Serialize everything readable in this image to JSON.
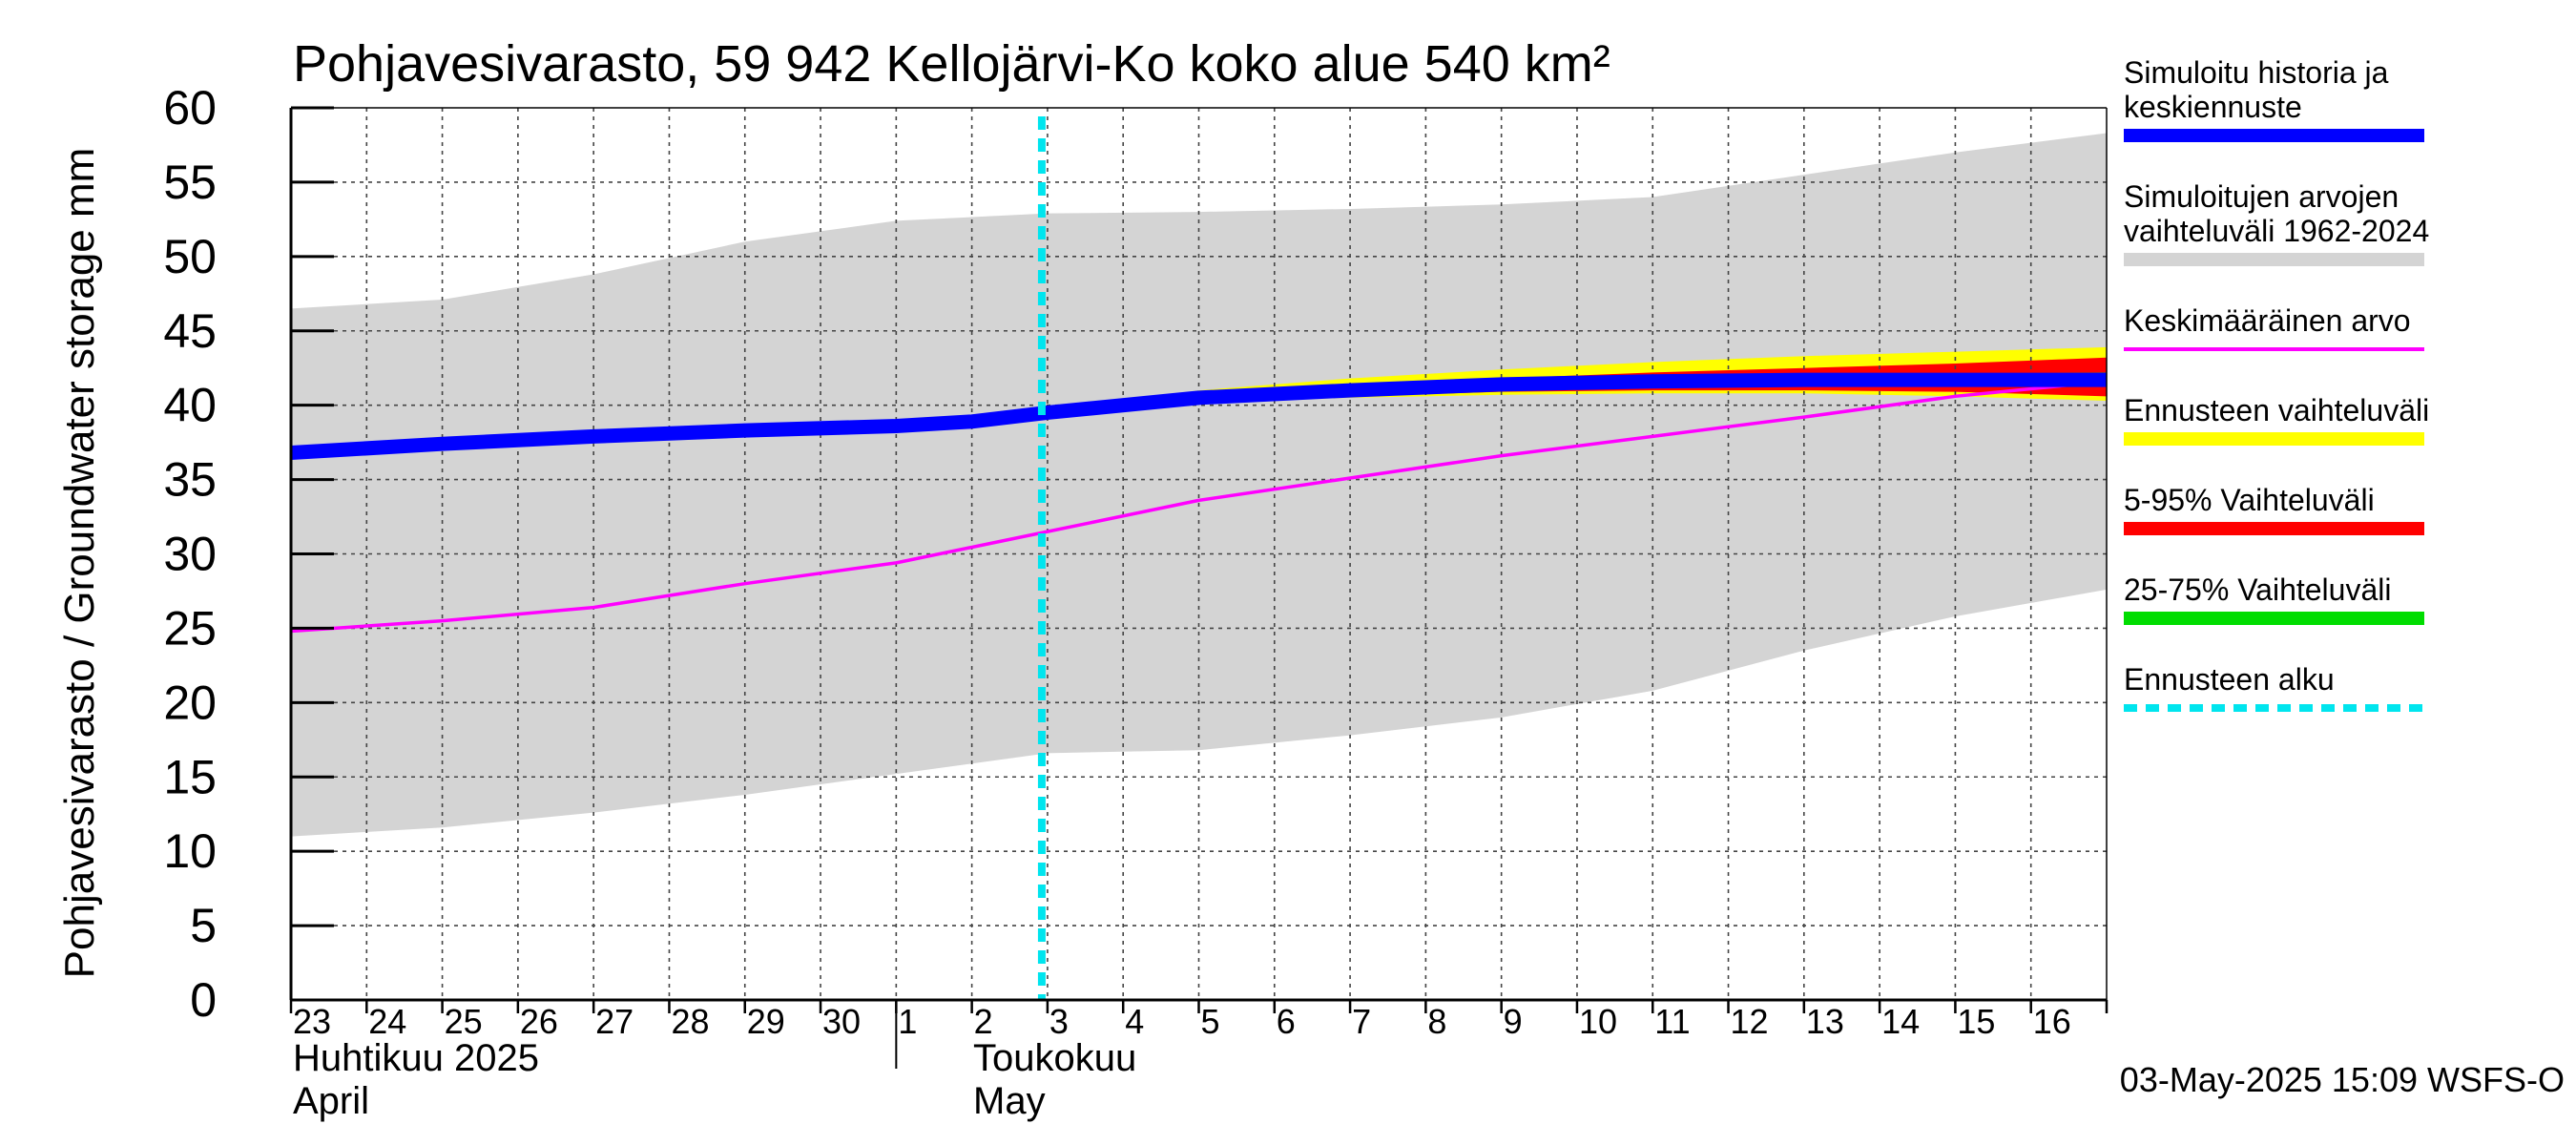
{
  "chart_data": {
    "type": "line",
    "title": "Pohjavesivarasto, 59 942 Kellojärvi-Ko koko alue 540 km²",
    "ylabel": "Pohjavesivarasto / Groundwater storage   mm",
    "ylim": [
      0,
      60
    ],
    "yticks": [
      "0",
      "5",
      "10",
      "15",
      "20",
      "25",
      "30",
      "35",
      "40",
      "45",
      "50",
      "55",
      "60"
    ],
    "x_start_day": 23,
    "x_end_day": 47,
    "grid": true,
    "x_tick_labels": [
      {
        "day": 23,
        "label": "23"
      },
      {
        "day": 24,
        "label": "24"
      },
      {
        "day": 25,
        "label": "25"
      },
      {
        "day": 26,
        "label": "26"
      },
      {
        "day": 27,
        "label": "27"
      },
      {
        "day": 28,
        "label": "28"
      },
      {
        "day": 29,
        "label": "29"
      },
      {
        "day": 30,
        "label": "30"
      },
      {
        "day": 31,
        "label": "1"
      },
      {
        "day": 32,
        "label": "2"
      },
      {
        "day": 33,
        "label": "3"
      },
      {
        "day": 34,
        "label": "4"
      },
      {
        "day": 35,
        "label": "5"
      },
      {
        "day": 36,
        "label": "6"
      },
      {
        "day": 37,
        "label": "7"
      },
      {
        "day": 38,
        "label": "8"
      },
      {
        "day": 39,
        "label": "9"
      },
      {
        "day": 40,
        "label": "10"
      },
      {
        "day": 41,
        "label": "11"
      },
      {
        "day": 42,
        "label": "12"
      },
      {
        "day": 43,
        "label": "13"
      },
      {
        "day": 44,
        "label": "14"
      },
      {
        "day": 45,
        "label": "15"
      },
      {
        "day": 46,
        "label": "16"
      }
    ],
    "month_labels": {
      "april_fi": "Huhtikuu  2025",
      "april_en": "April",
      "may_fi": "Toukokuu",
      "may_en": "May",
      "month_boundary_day": 31
    },
    "forecast_start_day": 33,
    "footer": "03-May-2025 15:09 WSFS-O",
    "series": [
      {
        "name": "Simuloitujen arvojen vaihteluväli 1962-2024",
        "kind": "band",
        "color": "#d4d4d4",
        "x": [
          23,
          25,
          27,
          29,
          31,
          33,
          35,
          37,
          39,
          41,
          43,
          45,
          47
        ],
        "lower": [
          11.0,
          11.6,
          12.6,
          13.8,
          15.2,
          16.6,
          16.8,
          17.8,
          19.0,
          20.8,
          23.5,
          25.8,
          27.6
        ],
        "upper": [
          46.5,
          47.1,
          48.8,
          51.0,
          52.4,
          52.9,
          53.0,
          53.2,
          53.5,
          54.0,
          55.5,
          57.0,
          58.3
        ]
      },
      {
        "name": "Ennusteen vaihteluväli",
        "kind": "band",
        "color": "#ffff00",
        "x": [
          33,
          35,
          37,
          39,
          41,
          43,
          45,
          47
        ],
        "lower": [
          39.3,
          40.2,
          40.5,
          40.7,
          40.8,
          40.8,
          40.6,
          40.3
        ],
        "upper": [
          39.5,
          41.0,
          41.8,
          42.4,
          42.9,
          43.3,
          43.6,
          43.9
        ]
      },
      {
        "name": "5-95% Vaihteluväli",
        "kind": "band",
        "color": "#ff0000",
        "x": [
          33,
          35,
          37,
          39,
          41,
          43,
          45,
          47
        ],
        "lower": [
          39.3,
          40.3,
          40.6,
          40.9,
          41.0,
          41.0,
          40.9,
          40.6
        ],
        "upper": [
          39.5,
          40.7,
          41.3,
          41.8,
          42.2,
          42.5,
          42.8,
          43.2
        ]
      },
      {
        "name": "25-75% Vaihteluväli",
        "kind": "band",
        "color": "#00dd00",
        "x": [
          33,
          35,
          37,
          39,
          41,
          43,
          45,
          47
        ],
        "lower": [
          39.4,
          40.4,
          40.9,
          41.2,
          41.4,
          41.5,
          41.5,
          41.4
        ],
        "upper": [
          39.5,
          40.6,
          41.1,
          41.6,
          41.9,
          42.0,
          42.1,
          42.2
        ]
      },
      {
        "name": "Keskimääräinen arvo",
        "kind": "line",
        "color": "#ff00ff",
        "x": [
          23,
          25,
          27,
          29,
          31,
          33,
          35,
          37,
          39,
          41,
          43,
          45,
          47
        ],
        "values": [
          24.8,
          25.5,
          26.4,
          28.0,
          29.4,
          31.5,
          33.6,
          35.1,
          36.6,
          37.9,
          39.2,
          40.6,
          41.6
        ]
      },
      {
        "name": "Simuloitu historia ja keskiennuste",
        "kind": "line",
        "color": "#0000ff",
        "x": [
          23,
          25,
          27,
          29,
          31,
          32,
          33,
          35,
          37,
          39,
          41,
          43,
          45,
          47
        ],
        "values": [
          36.8,
          37.4,
          37.9,
          38.3,
          38.6,
          38.9,
          39.5,
          40.5,
          41.0,
          41.4,
          41.6,
          41.7,
          41.7,
          41.7
        ]
      }
    ],
    "legend": [
      {
        "label": "Simuloitu historia ja keskiennuste",
        "color": "#0000ff",
        "style": "thick"
      },
      {
        "label": "Simuloitujen arvojen vaihteluväli 1962-2024",
        "color": "#d4d4d4",
        "style": "thick"
      },
      {
        "label": "Keskimääräinen arvo",
        "color": "#ff00ff",
        "style": "thin"
      },
      {
        "label": "Ennusteen vaihteluväli",
        "color": "#ffff00",
        "style": "thick"
      },
      {
        "label": "5-95% Vaihteluväli",
        "color": "#ff0000",
        "style": "thick"
      },
      {
        "label": "25-75% Vaihteluväli",
        "color": "#00dd00",
        "style": "thick"
      },
      {
        "label": "Ennusteen alku",
        "color": "#00e5ee",
        "style": "dashed"
      }
    ]
  }
}
